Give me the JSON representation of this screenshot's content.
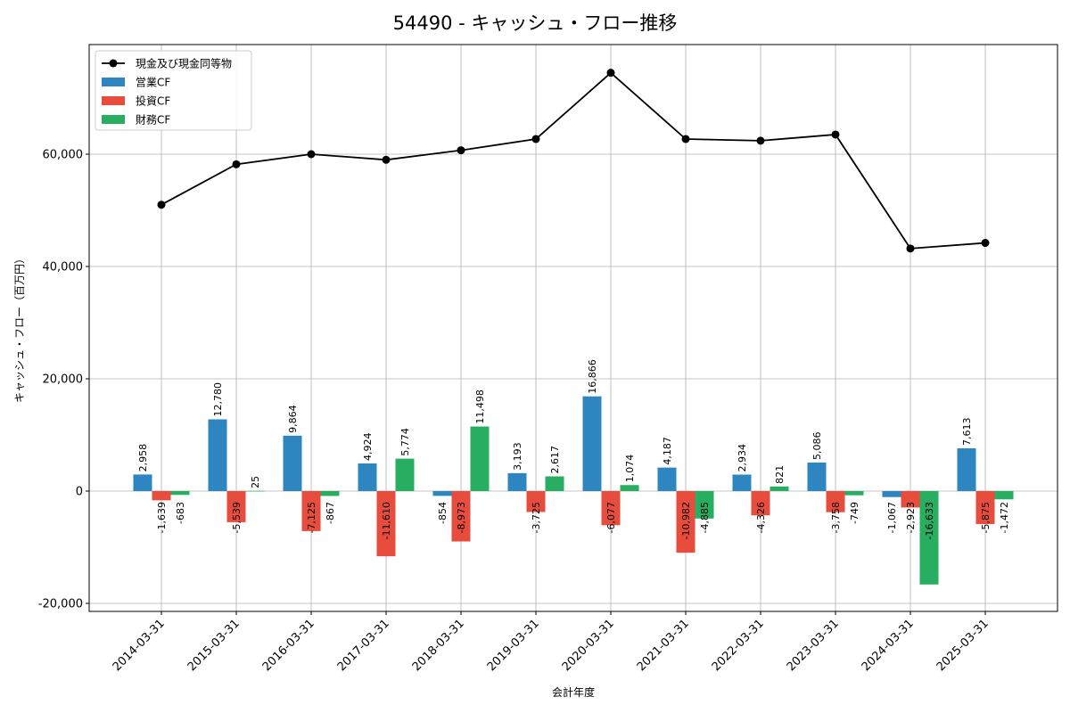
{
  "chart_data": {
    "type": "bar",
    "title": "54490 - キャッシュ・フロー推移",
    "xlabel": "会計年度",
    "ylabel": "キャッシュ・フロー（百万円）",
    "categories": [
      "2014-03-31",
      "2015-03-31",
      "2016-03-31",
      "2017-03-31",
      "2018-03-31",
      "2019-03-31",
      "2020-03-31",
      "2021-03-31",
      "2022-03-31",
      "2023-03-31",
      "2024-03-31",
      "2025-03-31"
    ],
    "ylim": [
      -21500,
      79500
    ],
    "yticks": [
      -20000,
      0,
      20000,
      40000,
      60000
    ],
    "ytick_labels": [
      "-20,000",
      "0",
      "20,000",
      "40,000",
      "60,000"
    ],
    "grid": true,
    "legend_position": "top-left",
    "series": [
      {
        "name": "営業CF",
        "kind": "bar",
        "color": "#2e86c1",
        "values": [
          2958,
          12780,
          9864,
          4924,
          -854,
          3193,
          16866,
          4187,
          2934,
          5086,
          -1067,
          7613
        ],
        "labels": [
          "2,958",
          "12,780",
          "9,864",
          "4,924",
          "-854",
          "3,193",
          "16,866",
          "4,187",
          "2,934",
          "5,086",
          "-1,067",
          "7,613"
        ]
      },
      {
        "name": "投資CF",
        "kind": "bar",
        "color": "#e74c3c",
        "values": [
          -1639,
          -5539,
          -7125,
          -11610,
          -8973,
          -3725,
          -6077,
          -10982,
          -4326,
          -3758,
          -2923,
          -5875
        ],
        "labels": [
          "-1,639",
          "-5,539",
          "-7,125",
          "-11,610",
          "-8,973",
          "-3,725",
          "-6,077",
          "-10,982",
          "-4,326",
          "-3,758",
          "-2,923",
          "-5,875"
        ]
      },
      {
        "name": "財務CF",
        "kind": "bar",
        "color": "#27ae60",
        "values": [
          -683,
          25,
          -867,
          5774,
          11498,
          2617,
          1074,
          -4885,
          821,
          -749,
          -16633,
          -1472
        ],
        "labels": [
          "-683",
          "25",
          "-867",
          "5,774",
          "11,498",
          "2,617",
          "1,074",
          "-4,885",
          "821",
          "-749",
          "-16,633",
          "-1,472"
        ]
      },
      {
        "name": "現金及び現金同等物",
        "kind": "line",
        "color": "#000000",
        "values": [
          51000,
          58200,
          60000,
          59000,
          60700,
          62700,
          74500,
          62700,
          62400,
          63500,
          43200,
          44200
        ]
      }
    ]
  }
}
